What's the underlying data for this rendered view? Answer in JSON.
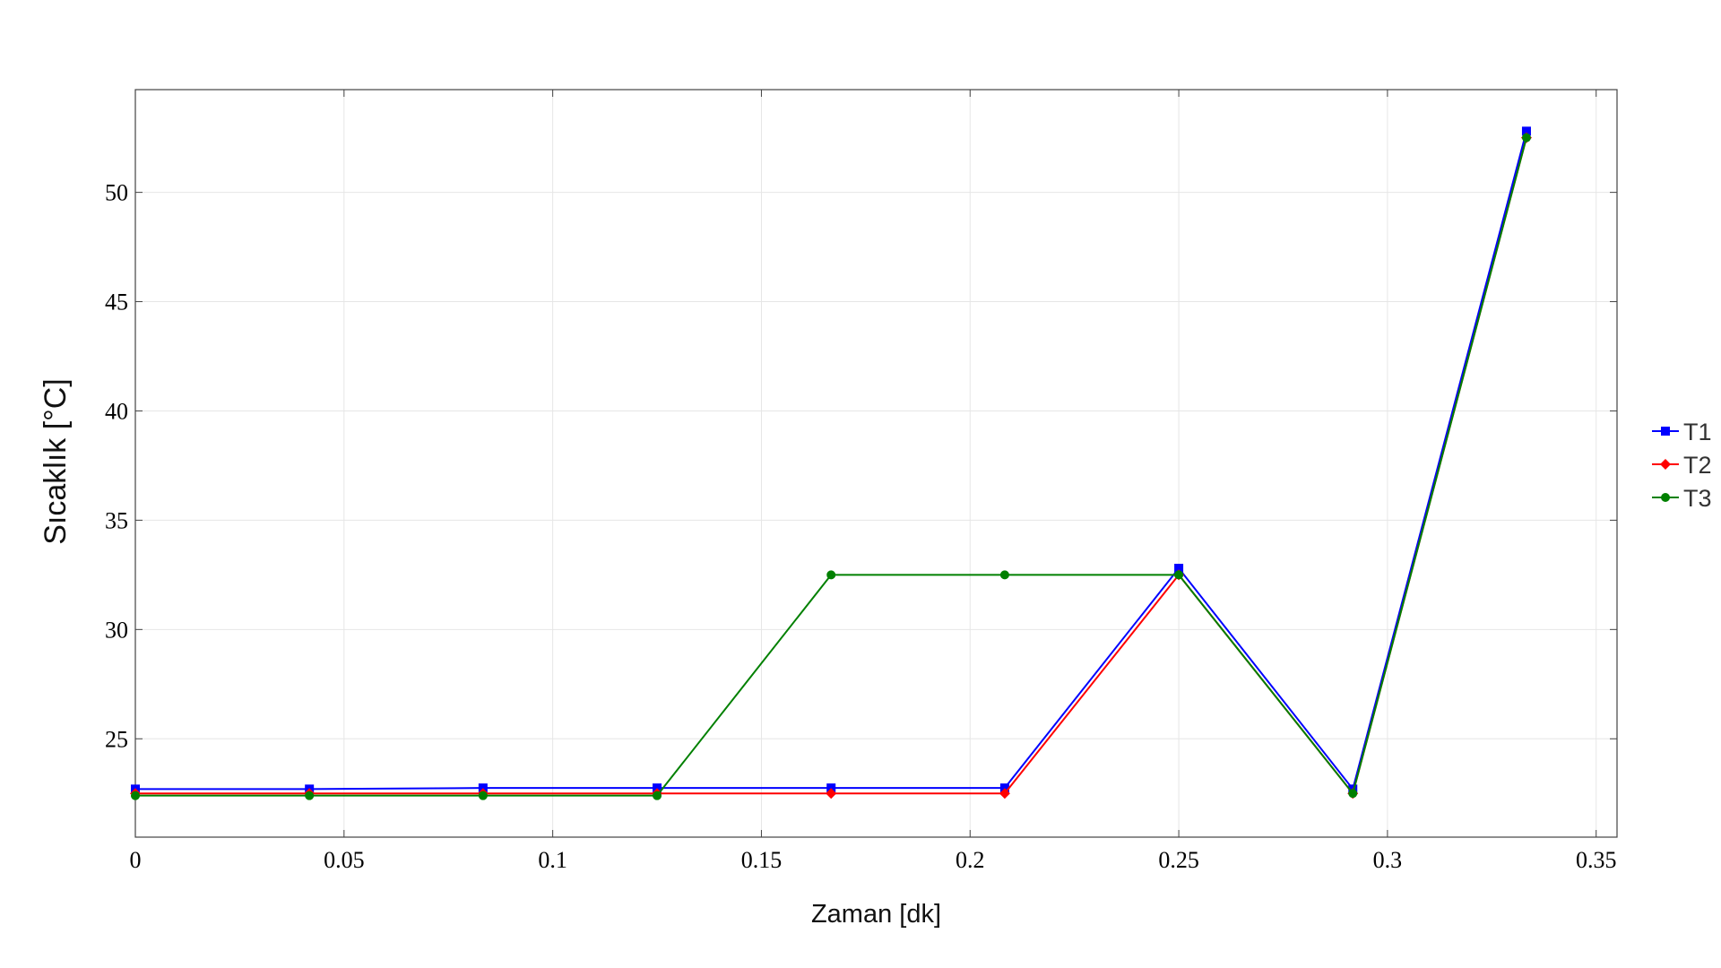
{
  "chart_data": {
    "type": "line",
    "xlabel": "Zaman [dk]",
    "ylabel": "Sıcaklık [°C]",
    "xlim": [
      0,
      0.355
    ],
    "ylim": [
      20.5,
      54.7
    ],
    "xticks": [
      0,
      0.05,
      0.1,
      0.15,
      0.2,
      0.25,
      0.3,
      0.35
    ],
    "xtick_labels": [
      "0",
      "0.05",
      "0.1",
      "0.15",
      "0.2",
      "0.25",
      "0.3",
      "0.35"
    ],
    "yticks": [
      25,
      30,
      35,
      40,
      45,
      50
    ],
    "ytick_labels": [
      "25",
      "30",
      "35",
      "40",
      "45",
      "50"
    ],
    "grid": true,
    "legend_position": "right",
    "x": [
      0,
      0.0417,
      0.0833,
      0.125,
      0.1667,
      0.2083,
      0.25,
      0.2917,
      0.3333
    ],
    "series": [
      {
        "name": "T1",
        "color": "#0000ff",
        "marker": "square",
        "values": [
          22.7,
          22.7,
          22.75,
          22.75,
          22.75,
          22.75,
          32.8,
          22.7,
          52.8
        ]
      },
      {
        "name": "T2",
        "color": "#ff0000",
        "marker": "diamond",
        "values": [
          22.5,
          22.5,
          22.5,
          22.5,
          22.5,
          22.5,
          32.5,
          22.5,
          52.5
        ]
      },
      {
        "name": "T3",
        "color": "#008000",
        "marker": "circle",
        "values": [
          22.4,
          22.4,
          22.4,
          22.4,
          32.5,
          32.5,
          32.5,
          22.5,
          52.5
        ]
      }
    ]
  }
}
